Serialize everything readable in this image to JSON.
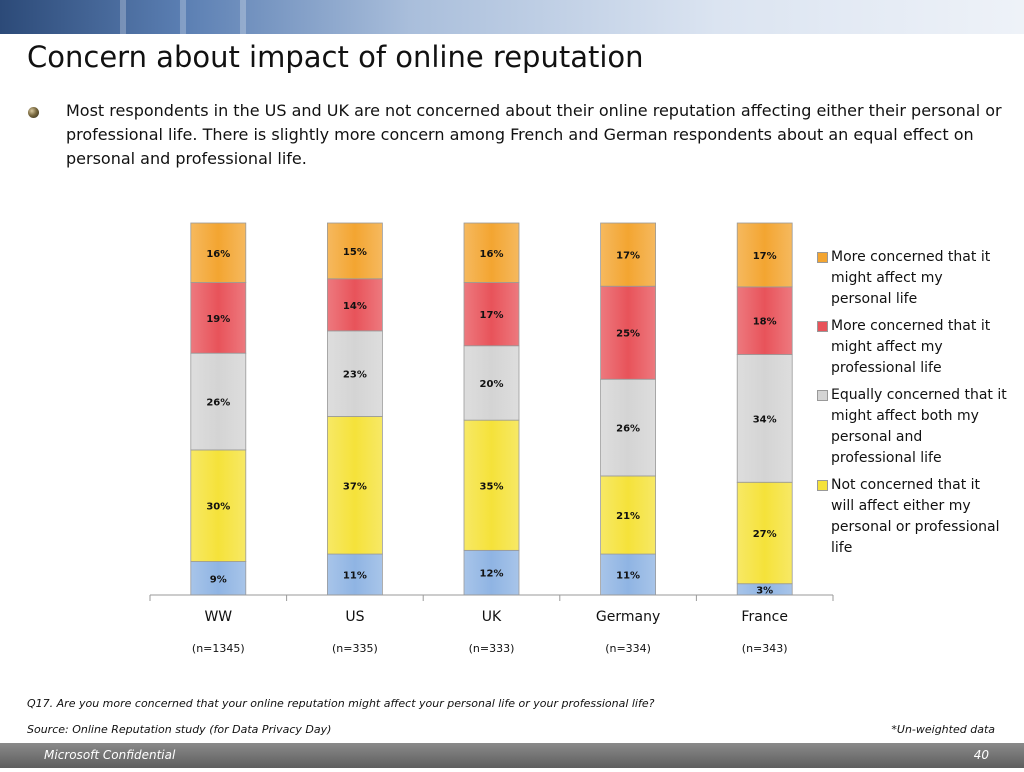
{
  "slide": {
    "title": "Concern about impact of online reputation",
    "bullet": "Most respondents in the US and UK are not concerned about their online reputation affecting either their personal or professional life. There is slightly more concern among French and German respondents about an equal effect on personal and professional life.",
    "question_note": "Q17. Are you more concerned that your online reputation might affect your personal life or your professional life?",
    "source_note": "Source: Online Reputation study (for Data Privacy Day)",
    "weight_note": "*Un-weighted data",
    "footer_left": "Microsoft Confidential",
    "page_number": "40"
  },
  "chart_data": {
    "type": "bar",
    "stacked": true,
    "percent_stacked": true,
    "categories": [
      "WW",
      "US",
      "UK",
      "Germany",
      "France"
    ],
    "sample_sizes": [
      "(n=1345)",
      "(n=335)",
      "(n=333)",
      "(n=334)",
      "(n=343)"
    ],
    "series": [
      {
        "name": "Not concerned that it will affect either my personal or professional life",
        "color": "#f5e23a",
        "values": [
          30,
          37,
          35,
          21,
          27
        ]
      },
      {
        "name": "Equally concerned that it might affect both my personal and professional life",
        "color": "#d4d4d4",
        "values": [
          26,
          23,
          20,
          26,
          34
        ]
      },
      {
        "name": "More concerned that it might affect my professional life",
        "color": "#e8535a",
        "values": [
          19,
          14,
          17,
          25,
          18
        ]
      },
      {
        "name": "More concerned that it might affect my personal life",
        "color": "#f3a531",
        "values": [
          16,
          15,
          16,
          17,
          17
        ]
      }
    ],
    "base_series": {
      "color": "#8fb4e3",
      "values": [
        9,
        11,
        12,
        11,
        3
      ]
    },
    "legend_order": [
      {
        "label": "More concerned that it might affect my personal life",
        "color": "#f3a531"
      },
      {
        "label": "More concerned that it might affect my professional life",
        "color": "#e8535a"
      },
      {
        "label": "Equally concerned that it might affect both my personal and professional life",
        "color": "#d4d4d4"
      },
      {
        "label": "Not concerned that it will affect either my personal or professional life",
        "color": "#f5e23a"
      }
    ],
    "value_suffix": "%",
    "ylim": [
      0,
      100
    ],
    "legend_position": "right",
    "grid": false
  }
}
